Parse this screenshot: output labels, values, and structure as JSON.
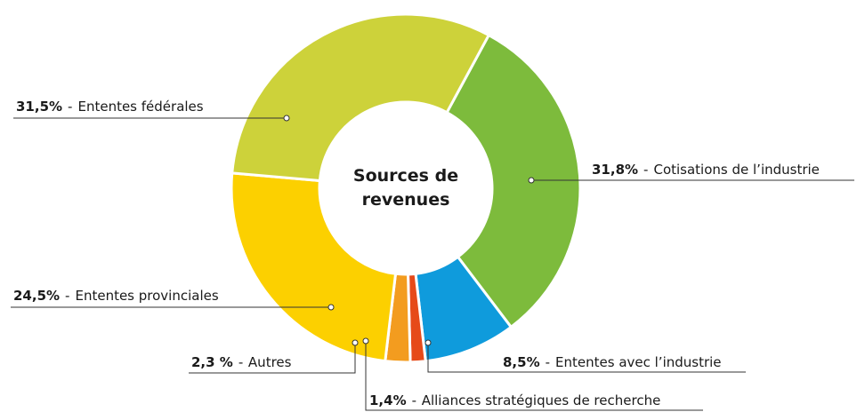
{
  "chart_data": {
    "type": "donut",
    "title": "Sources de revenues",
    "separator": "-",
    "categories": [
      "Cotisations de l’industrie",
      "Ententes avec l’industrie",
      "Alliances stratégiques de recherche",
      "Autres",
      "Ententes provinciales",
      "Ententes fédérales"
    ],
    "values": [
      31.8,
      8.5,
      1.4,
      2.3,
      24.5,
      31.5
    ],
    "value_labels": [
      "31,8%",
      "8,5%",
      "1,4%",
      "2,3 %",
      "24,5%",
      "31,5%"
    ],
    "colors": [
      "#7dbb3c",
      "#0f9bdc",
      "#e64a19",
      "#f39c1f",
      "#fcd000",
      "#cdd23a"
    ]
  }
}
